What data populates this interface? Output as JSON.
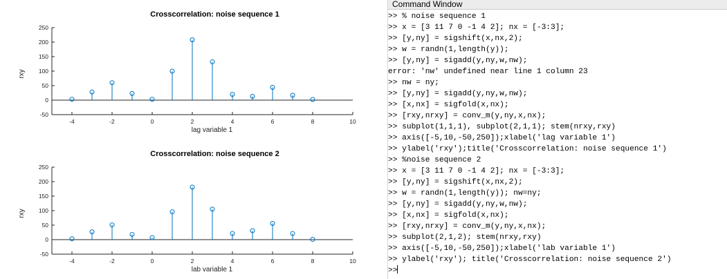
{
  "figure": {
    "subplots": [
      {
        "title": "Crosscorrelation: noise sequence 1",
        "xlabel": "lag variable 1",
        "ylabel": "rxy"
      },
      {
        "title": "Crosscorrelation: noise sequence 2",
        "xlabel": "lab variable 1",
        "ylabel": "rxy"
      }
    ]
  },
  "chart_data": [
    {
      "type": "stem",
      "title": "Crosscorrelation: noise sequence 1",
      "xlabel": "lag variable 1",
      "ylabel": "rxy",
      "xlim": [
        -5,
        10
      ],
      "ylim": [
        -50,
        250
      ],
      "xticks": [
        -4,
        -2,
        0,
        2,
        4,
        6,
        8,
        10
      ],
      "yticks": [
        -50,
        0,
        50,
        100,
        150,
        200,
        250
      ],
      "x": [
        -4,
        -3,
        -2,
        -1,
        0,
        1,
        2,
        3,
        4,
        5,
        6,
        7,
        8
      ],
      "values": [
        3,
        28,
        60,
        23,
        3,
        100,
        208,
        132,
        20,
        13,
        44,
        17,
        2
      ],
      "color": "#0072bd"
    },
    {
      "type": "stem",
      "title": "Crosscorrelation: noise sequence 2",
      "xlabel": "lab variable 1",
      "ylabel": "rxy",
      "xlim": [
        -5,
        10
      ],
      "ylim": [
        -50,
        250
      ],
      "xticks": [
        -4,
        -2,
        0,
        2,
        4,
        6,
        8,
        10
      ],
      "yticks": [
        -50,
        0,
        50,
        100,
        150,
        200,
        250
      ],
      "x": [
        -4,
        -3,
        -2,
        -1,
        0,
        1,
        2,
        3,
        4,
        5,
        6,
        7,
        8
      ],
      "values": [
        3,
        27,
        51,
        18,
        7,
        96,
        181,
        105,
        21,
        31,
        56,
        21,
        1
      ],
      "color": "#0072bd"
    }
  ],
  "command_window": {
    "title": "Command Window",
    "prompt": ">>",
    "lines": [
      {
        "prompt": ">>",
        "text": "% noise sequence 1"
      },
      {
        "prompt": ">>",
        "text": "x = [3 11 7 0 -1 4 2]; nx = [-3:3];"
      },
      {
        "prompt": ">>",
        "text": "[y,ny] = sigshift(x,nx,2);"
      },
      {
        "prompt": ">>",
        "text": "w = randn(1,length(y));"
      },
      {
        "prompt": ">>",
        "text": "[y,ny] = sigadd(y,ny,w,nw);"
      },
      {
        "prompt": "",
        "text": "error: 'nw' undefined near line 1 column 23"
      },
      {
        "prompt": ">>",
        "text": "nw = ny;"
      },
      {
        "prompt": ">>",
        "text": "[y,ny] = sigadd(y,ny,w,nw);"
      },
      {
        "prompt": ">>",
        "text": "[x,nx] = sigfold(x,nx);"
      },
      {
        "prompt": ">>",
        "text": "[rxy,nrxy] = conv_m(y,ny,x,nx);"
      },
      {
        "prompt": ">>",
        "text": "subplot(1,1,1), subplot(2,1,1); stem(nrxy,rxy)"
      },
      {
        "prompt": ">>",
        "text": "axis([-5,10,-50,250]);xlabel('lag variable 1')"
      },
      {
        "prompt": ">>",
        "text": "ylabel('rxy');title('Crosscorrelation: noise sequence 1')"
      },
      {
        "prompt": ">>",
        "text": "%noise sequence 2"
      },
      {
        "prompt": ">>",
        "text": "x = [3 11 7 0 -1 4 2]; nx = [-3:3];"
      },
      {
        "prompt": ">>",
        "text": "[y,ny] = sigshift(x,nx,2);"
      },
      {
        "prompt": ">>",
        "text": "w = randn(1,length(y)); nw=ny;"
      },
      {
        "prompt": ">>",
        "text": "[y,ny] = sigadd(y,ny,w,nw);"
      },
      {
        "prompt": ">>",
        "text": "[x,nx] = sigfold(x,nx);"
      },
      {
        "prompt": ">>",
        "text": "[rxy,nrxy] = conv_m(y,ny,x,nx);"
      },
      {
        "prompt": ">>",
        "text": "subplot(2,1,2); stem(nrxy,rxy)"
      },
      {
        "prompt": ">>",
        "text": "axis([-5,10,-50,250]);xlabel('lab variable 1')"
      },
      {
        "prompt": ">>",
        "text": "ylabel('rxy'); title('Crosscorrelation: noise sequence 2')"
      }
    ]
  }
}
